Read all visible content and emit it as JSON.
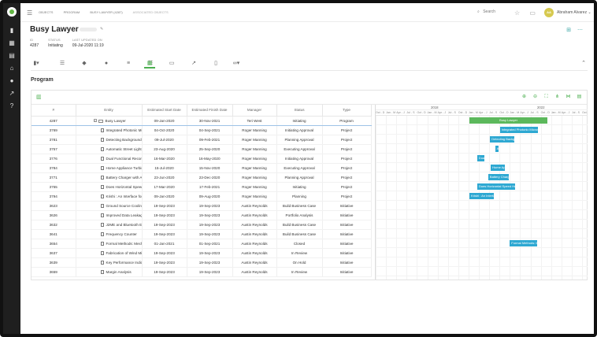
{
  "breadcrumbs": [
    "OBJECTS",
    "PROGRAM",
    "BUSY LAWYER (4287)",
    "ASSOCIATED OBJECTS"
  ],
  "search": {
    "placeholder": "Search"
  },
  "user": {
    "name": "Abraham Alvarez",
    "initials": "AA"
  },
  "header": {
    "title": "Busy Lawyer",
    "meta": [
      {
        "label": "ID",
        "value": "4287"
      },
      {
        "label": "STATUS",
        "value": "Initiating"
      },
      {
        "label": "LAST UPDATED ON",
        "value": "09-Jul-2020 11:19"
      }
    ]
  },
  "section_title": "Program",
  "columns": [
    "#",
    "Entity",
    "Estimated Start Date",
    "Estimated Finish Date",
    "Manager",
    "Status",
    "Type"
  ],
  "rows": [
    {
      "id": "4287",
      "entity": "Busy Lawyer",
      "start": "09-Jan-2020",
      "finish": "30-Nov-2021",
      "manager": "Teri West",
      "status": "Initiating",
      "type": "Program"
    },
    {
      "id": "3769",
      "entity": "Integrated Photonic Microwave",
      "start": "04-Oct-2020",
      "finish": "04-Sep-2021",
      "manager": "Roger Manning",
      "status": "Initiating Approval",
      "type": "Project"
    },
    {
      "id": "3781",
      "entity": "Detecting Background Setting",
      "start": "09-Jul-2020",
      "finish": "09-Feb-2021",
      "manager": "Roger Manning",
      "status": "Planning Approval",
      "type": "Project"
    },
    {
      "id": "3757",
      "entity": "Automatic Street Light Control",
      "start": "23-Aug-2020",
      "finish": "25-Sep-2020",
      "manager": "Roger Manning",
      "status": "Executing Approval",
      "type": "Project"
    },
    {
      "id": "3776",
      "entity": "Dual Functional Reconfigurable",
      "start": "16-Mar-2020",
      "finish": "16-May-2020",
      "manager": "Roger Manning",
      "status": "Initiating Approval",
      "type": "Project"
    },
    {
      "id": "3784",
      "entity": "Home Appliance Turbine",
      "start": "15-Jul-2020",
      "finish": "15-Nov-2020",
      "manager": "Roger Manning",
      "status": "Executing Approval",
      "type": "Project"
    },
    {
      "id": "3771",
      "entity": "Battery Charger with Auto Cut",
      "start": "23-Jun-2020",
      "finish": "23-Dec-2020",
      "manager": "Roger Manning",
      "status": "Planning Approval",
      "type": "Project"
    },
    {
      "id": "3755",
      "entity": "Does Horizontal Speed Help",
      "start": "17-Mar-2020",
      "finish": "17-Feb-2021",
      "manager": "Roger Manning",
      "status": "Initiating",
      "type": "Project"
    },
    {
      "id": "3794",
      "entity": "Krishi : An Interface for Indian",
      "start": "09-Jan-2020",
      "finish": "09-Aug-2020",
      "manager": "Roger Manning",
      "status": "Planning",
      "type": "Project"
    },
    {
      "id": "3623",
      "entity": "Ground Source Cooling System",
      "start": "19-Sep-2023",
      "finish": "19-Sep-2023",
      "manager": "Austin Reynolds",
      "status": "Build Business Case",
      "type": "Initiative"
    },
    {
      "id": "3626",
      "entity": "Improved Data Leakage Detection",
      "start": "19-Sep-2023",
      "finish": "19-Sep-2023",
      "manager": "Austin Reynolds",
      "status": "Portfolio Analysis",
      "type": "Initiative"
    },
    {
      "id": "3632",
      "entity": "J2ME and Bluetooth Enabled",
      "start": "19-Sep-2023",
      "finish": "19-Sep-2023",
      "manager": "Austin Reynolds",
      "status": "Build Business Case",
      "type": "Initiative"
    },
    {
      "id": "3641",
      "entity": "Frequency Counter",
      "start": "19-Sep-2023",
      "finish": "19-Sep-2023",
      "manager": "Austin Reynolds",
      "status": "Build Business Case",
      "type": "Initiative"
    },
    {
      "id": "3654",
      "entity": "Formal Methods: Mechanical",
      "start": "01-Jan-2021",
      "finish": "01-Sep-2021",
      "manager": "Austin Reynolds",
      "status": "Closed",
      "type": "Initiative"
    },
    {
      "id": "3637",
      "entity": "Fabrication of Wind Mill",
      "start": "19-Sep-2023",
      "finish": "19-Sep-2023",
      "manager": "Austin Reynolds",
      "status": "In Review",
      "type": "Initiative"
    },
    {
      "id": "3639",
      "entity": "Key Performance Indicators of",
      "start": "19-Sep-2023",
      "finish": "19-Sep-2023",
      "manager": "Austin Reynolds",
      "status": "On Hold",
      "type": "Initiative"
    },
    {
      "id": "3659",
      "entity": "Margin Analysis",
      "start": "19-Sep-2023",
      "finish": "19-Sep-2023",
      "manager": "Austin Reynolds",
      "status": "In Review",
      "type": "Initiative"
    }
  ],
  "gantt": {
    "years": [
      "2018",
      "2022"
    ],
    "quarter_labels": [
      "Oct - D",
      "Jan - M",
      "Apr - J",
      "Jul - S",
      "Oct - D",
      "Jan - M",
      "Apr - J",
      "Jul - S",
      "Oct - D",
      "Jan - M",
      "Apr - J",
      "Jul - S",
      "Oct - D",
      "Jan - M",
      "Apr - J",
      "Jul - S",
      "Oct - D",
      "Jan - M",
      "Apr - J",
      "Jul - S",
      "Oct - D"
    ],
    "bar_labels": [
      "Busy Lawyer",
      "Integrated Photonic Microwave",
      "Detecting Background Setting",
      "Automatic Street Light Control",
      "Dual Functional Reconfigurable",
      "Home Appliance Turbine",
      "Battery Charger with Auto Cut",
      "Does Horizontal Speed Help",
      "Krishi : An Interface for Indian",
      "",
      "",
      "",
      "",
      "Formal Methods: Mechanical",
      "",
      "",
      ""
    ],
    "colors": {
      "program": "#5cb85c",
      "project": "#2ea8d2"
    }
  }
}
